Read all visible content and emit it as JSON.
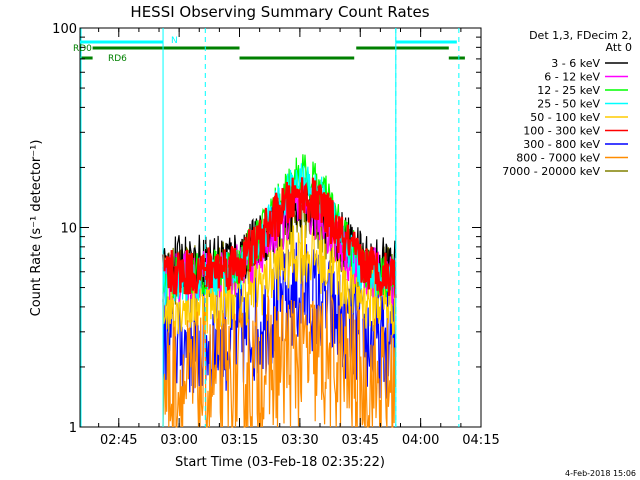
{
  "chart_data": {
    "type": "line",
    "title": "HESSI Observing Summary Count Rates",
    "xlabel": "Start Time (03-Feb-18 02:35:22)",
    "ylabel": "Count Rate (s⁻¹ detector⁻¹)",
    "y_scale": "log",
    "ylim": [
      1,
      100
    ],
    "xlim": [
      "02:35:22",
      "04:15:00"
    ],
    "x_tick_labels": [
      "02:45",
      "03:00",
      "03:15",
      "03:30",
      "03:45",
      "04:00",
      "04:15"
    ],
    "y_tick_labels": [
      "1",
      "10",
      "100"
    ],
    "data_interval": [
      "02:56:00",
      "03:53:50"
    ],
    "legend_header": [
      "Det 1,3, FDecim 2,",
      "Att 0"
    ],
    "series": [
      {
        "name": "3 - 6 keV",
        "color": "#000000",
        "x": [
          "02:56",
          "03:05",
          "03:15",
          "03:20",
          "03:25",
          "03:30",
          "03:35",
          "03:40",
          "03:45",
          "03:50",
          "03:53"
        ],
        "values": [
          6.5,
          6.8,
          7.2,
          8.5,
          11,
          13.5,
          12,
          9,
          7.2,
          6.8,
          6.5
        ]
      },
      {
        "name": "6 - 12 keV",
        "color": "#ff00ff",
        "x": [
          "02:56",
          "03:05",
          "03:15",
          "03:20",
          "03:25",
          "03:30",
          "03:35",
          "03:40",
          "03:45",
          "03:50",
          "03:53"
        ],
        "values": [
          5.5,
          5.8,
          6.2,
          7.5,
          10,
          12.5,
          11,
          8,
          6.2,
          5.8,
          5.5
        ]
      },
      {
        "name": "12 - 25 keV",
        "color": "#00ff00",
        "x": [
          "02:56",
          "03:05",
          "03:15",
          "03:20",
          "03:25",
          "03:30",
          "03:35",
          "03:40",
          "03:45",
          "03:50",
          "03:53"
        ],
        "values": [
          5.5,
          5.8,
          6.5,
          9,
          14,
          19,
          16,
          10,
          6.5,
          5.8,
          5.5
        ]
      },
      {
        "name": "25 - 50 keV",
        "color": "#00ffff",
        "x": [
          "02:56",
          "03:05",
          "03:15",
          "03:20",
          "03:25",
          "03:30",
          "03:35",
          "03:40",
          "03:45",
          "03:50",
          "03:53"
        ],
        "values": [
          5.2,
          5.5,
          6.2,
          8.5,
          13,
          17,
          14.5,
          9,
          6.2,
          5.5,
          5.2
        ]
      },
      {
        "name": "50 - 100 keV",
        "color": "#ffcc00",
        "x": [
          "02:56",
          "03:05",
          "03:15",
          "03:20",
          "03:25",
          "03:30",
          "03:35",
          "03:40",
          "03:45",
          "03:50",
          "03:53"
        ],
        "values": [
          4.2,
          4.3,
          4.6,
          5.2,
          6.5,
          7.8,
          7,
          5.6,
          4.6,
          4.3,
          4.2
        ]
      },
      {
        "name": "100 - 300 keV",
        "color": "#ff0000",
        "x": [
          "02:56",
          "03:05",
          "03:15",
          "03:20",
          "03:25",
          "03:30",
          "03:35",
          "03:40",
          "03:45",
          "03:50",
          "03:53"
        ],
        "values": [
          5.8,
          6,
          6.6,
          8.5,
          12,
          14.5,
          13,
          9,
          6.6,
          6,
          5.8
        ]
      },
      {
        "name": "300 - 800 keV",
        "color": "#0000ff",
        "x": [
          "02:56",
          "03:05",
          "03:15",
          "03:20",
          "03:25",
          "03:30",
          "03:35",
          "03:40",
          "03:45",
          "03:50",
          "03:53"
        ],
        "values": [
          2.6,
          2.6,
          2.8,
          3.2,
          4,
          4.8,
          4.3,
          3.4,
          2.8,
          2.6,
          2.6
        ]
      },
      {
        "name": "800 - 7000 keV",
        "color": "#ff8c00",
        "x": [
          "02:56",
          "03:05",
          "03:15",
          "03:20",
          "03:25",
          "03:30",
          "03:35",
          "03:40",
          "03:45",
          "03:50",
          "03:53"
        ],
        "values": [
          1.6,
          1.6,
          1.7,
          1.9,
          2.1,
          2.3,
          2.2,
          2,
          1.7,
          1.6,
          1.6
        ]
      },
      {
        "name": "7000 - 20000 keV",
        "color": "#808000",
        "x": [
          "02:56",
          "03:05",
          "03:15",
          "03:20",
          "03:25",
          "03:30",
          "03:35",
          "03:40",
          "03:45",
          "03:50",
          "03:53"
        ],
        "values": [
          5.6,
          5.8,
          6.3,
          7.6,
          10,
          11.5,
          10.5,
          8,
          6.3,
          5.8,
          5.6
        ]
      }
    ],
    "flags": {
      "night": {
        "label": "N",
        "color": "#00ffff",
        "bars": [
          [
            "02:35:22",
            "02:56:00"
          ],
          [
            "03:53:50",
            "04:09:00"
          ]
        ]
      },
      "rd0": {
        "label": "RD0",
        "color": "#008000",
        "bars": [
          [
            "02:38:30",
            "03:15:00"
          ],
          [
            "03:44:00",
            "04:07:00"
          ]
        ]
      },
      "rd6": {
        "label": "RD6",
        "color": "#008000",
        "bars": [
          [
            "02:35:22",
            "02:38:30"
          ],
          [
            "03:15:00",
            "03:43:30"
          ],
          [
            "04:07:00",
            "04:11:00"
          ]
        ]
      },
      "saa_lines": [
        "03:06:30",
        "03:53:50",
        "04:09:30"
      ]
    },
    "grid": false,
    "legend_position": "right"
  },
  "footer": {
    "generated_date": "4-Feb-2018 15:06"
  }
}
